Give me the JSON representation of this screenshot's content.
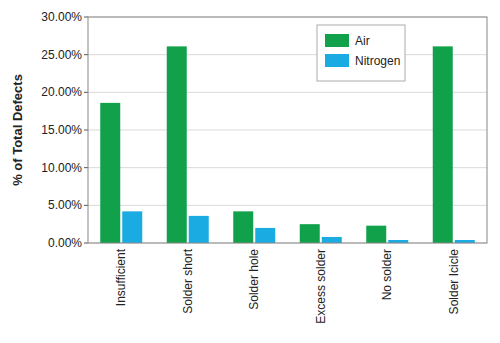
{
  "chart_data": {
    "type": "bar",
    "ylabel": "% of Total Defects",
    "categories": [
      "Insufficient",
      "Solder short",
      "Solder hole",
      "Excess solder",
      "No solder",
      "Solder Icicle"
    ],
    "series": [
      {
        "name": "Air",
        "color": "#12a14b",
        "values": [
          18.6,
          26.1,
          4.2,
          2.5,
          2.3,
          26.1
        ]
      },
      {
        "name": "Nitrogen",
        "color": "#1aabe2",
        "values": [
          4.2,
          3.6,
          2.0,
          0.8,
          0.4,
          0.4
        ]
      }
    ],
    "ylim": [
      0,
      30
    ],
    "yticks": [
      {
        "value": 0,
        "label": "0.00%"
      },
      {
        "value": 5,
        "label": "5.00%"
      },
      {
        "value": 10,
        "label": "10.00%"
      },
      {
        "value": 15,
        "label": "15.00%"
      },
      {
        "value": 20,
        "label": "20.00%"
      },
      {
        "value": 25,
        "label": "25.00%"
      },
      {
        "value": 30,
        "label": "30.00%"
      }
    ],
    "grid": true,
    "legend": "upper right"
  }
}
